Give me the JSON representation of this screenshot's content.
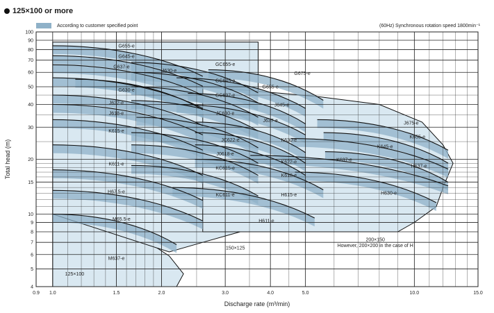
{
  "header": {
    "title": "125×100 or more",
    "legend_label": "According to customer specified point",
    "right_note": "(60Hz) Synchronous rotation speed 1800min⁻¹"
  },
  "colors": {
    "region_fill": "#d9e8f1",
    "band_fill": "#8fb1c8",
    "grid": "#222222",
    "curve": "#111111"
  },
  "chart_data": {
    "type": "pump-performance-map",
    "xlabel": "Discharge rate (m³/min)",
    "ylabel": "Total head (m)",
    "xscale": "log",
    "yscale": "log",
    "xlim": [
      0.9,
      15.0
    ],
    "ylim": [
      4,
      100
    ],
    "x_ticks": [
      0.9,
      1.0,
      1.5,
      2.0,
      3.0,
      4.0,
      5.0,
      10.0,
      15.0
    ],
    "x_tick_labels": [
      "0.9",
      "1.0",
      "1.5",
      "2.0",
      "3.0",
      "4.0",
      "5.0",
      "10.0",
      "15.0"
    ],
    "y_ticks": [
      4,
      5,
      6,
      7,
      8,
      9,
      10,
      15,
      20,
      30,
      40,
      50,
      60,
      70,
      80,
      90,
      100
    ],
    "y_tick_labels": [
      "4",
      "5",
      "6",
      "7",
      "8",
      "9",
      "10",
      "15",
      "20",
      "30",
      "40",
      "50",
      "60",
      "70",
      "80",
      "90",
      "100"
    ],
    "grid": true,
    "regions": [
      {
        "label": "125×100",
        "x": 1.15,
        "y": 4.6,
        "outline": [
          [
            1.0,
            4.0
          ],
          [
            2.2,
            4.0
          ],
          [
            2.3,
            4.7
          ],
          [
            2.1,
            5.9
          ],
          [
            1.8,
            7.2
          ],
          [
            1.45,
            8.4
          ],
          [
            1.0,
            10.0
          ]
        ]
      },
      {
        "label": "150×125",
        "x": 3.2,
        "y": 6.4,
        "outline": [
          [
            1.0,
            10.0
          ],
          [
            2.1,
            6.2
          ],
          [
            2.6,
            7.0
          ],
          [
            3.3,
            8.0
          ],
          [
            3.7,
            8.8
          ],
          [
            3.7,
            88
          ],
          [
            1.0,
            88
          ]
        ]
      },
      {
        "label": "200×150",
        "x": 7.8,
        "y": 7.1,
        "outline": [
          [
            2.6,
            8.0
          ],
          [
            9.0,
            8.0
          ],
          [
            10.0,
            9.0
          ],
          [
            11.5,
            11.0
          ],
          [
            12.0,
            14.0
          ],
          [
            12.8,
            19.0
          ],
          [
            12.0,
            24.0
          ],
          [
            10.5,
            32.0
          ],
          [
            8.0,
            40.0
          ],
          [
            5.5,
            44.0
          ],
          [
            4.3,
            46.0
          ],
          [
            2.6,
            50.0
          ]
        ]
      },
      {
        "label": "However, 200×200 in the case of H",
        "x": 7.8,
        "y": 6.6,
        "outline": []
      }
    ],
    "pumps": [
      {
        "label": "G655-e",
        "x": 1.6,
        "y": 82,
        "head_shutoff": 84,
        "x_end": 2.6
      },
      {
        "label": "G645-e",
        "x": 1.6,
        "y": 72,
        "head_shutoff": 74,
        "x_end": 2.6
      },
      {
        "label": "G637-e",
        "x": 1.55,
        "y": 63,
        "head_shutoff": 66,
        "x_end": 2.6
      },
      {
        "label": "J630-e",
        "x": 2.1,
        "y": 60,
        "head_shutoff": 55,
        "x_end": 2.6
      },
      {
        "label": "G630-e",
        "x": 1.6,
        "y": 47,
        "head_shutoff": 56,
        "x_end": 2.6
      },
      {
        "label": "J622-e",
        "x": 1.5,
        "y": 40,
        "head_shutoff": 45,
        "x_end": 2.6
      },
      {
        "label": "J618-e",
        "x": 1.5,
        "y": 35,
        "head_shutoff": 40,
        "x_end": 2.6
      },
      {
        "label": "K615-e",
        "x": 1.5,
        "y": 28,
        "head_shutoff": 33,
        "x_end": 2.6
      },
      {
        "label": "K611-e",
        "x": 1.5,
        "y": 18.5,
        "head_shutoff": 24,
        "x_end": 2.6
      },
      {
        "label": "H67.5-e",
        "x": 1.5,
        "y": 13,
        "head_shutoff": 17.5,
        "x_end": 2.6
      },
      {
        "label": "M65.5-e",
        "x": 1.55,
        "y": 9.2,
        "head_shutoff": 13.5,
        "x_end": 2.6
      },
      {
        "label": "M637-e",
        "x": 1.5,
        "y": 5.6,
        "head_shutoff": 10,
        "x_end": 2.2
      },
      {
        "label": "GC655-e",
        "x": 3.0,
        "y": 65,
        "head_shutoff": 68,
        "x_end": 3.7
      },
      {
        "label": "GC645-e",
        "x": 3.0,
        "y": 53,
        "head_shutoff": 60,
        "x_end": 3.7
      },
      {
        "label": "GC637-e",
        "x": 3.0,
        "y": 44,
        "head_shutoff": 50,
        "x_end": 3.7
      },
      {
        "label": "JC630-e",
        "x": 3.0,
        "y": 35,
        "head_shutoff": 42,
        "x_end": 3.7
      },
      {
        "label": "JC622-e",
        "x": 3.1,
        "y": 25,
        "head_shutoff": 34,
        "x_end": 3.7
      },
      {
        "label": "J0618-e",
        "x": 3.0,
        "y": 21,
        "head_shutoff": 28,
        "x_end": 3.7
      },
      {
        "label": "KC615-e",
        "x": 3.0,
        "y": 17.5,
        "head_shutoff": 24,
        "x_end": 3.7
      },
      {
        "label": "KC611-e",
        "x": 3.0,
        "y": 12.5,
        "head_shutoff": 18.5,
        "x_end": 3.7
      },
      {
        "label": "G675-e",
        "x": 4.9,
        "y": 58,
        "head_shutoff": 62,
        "x_end": 5.6
      },
      {
        "label": "G655-e",
        "x": 4.0,
        "y": 49,
        "head_shutoff": 56,
        "x_end": 5.0
      },
      {
        "label": "J645-e",
        "x": 4.3,
        "y": 39,
        "head_shutoff": 46,
        "x_end": 5.0
      },
      {
        "label": "J637-e",
        "x": 4.0,
        "y": 32,
        "head_shutoff": 40,
        "x_end": 5.0
      },
      {
        "label": "K630-e",
        "x": 4.5,
        "y": 25,
        "head_shutoff": 32,
        "x_end": 5.0
      },
      {
        "label": "K622-e",
        "x": 4.5,
        "y": 19,
        "head_shutoff": 28,
        "x_end": 5.0
      },
      {
        "label": "K618-e",
        "x": 4.5,
        "y": 16,
        "head_shutoff": 24,
        "x_end": 5.0
      },
      {
        "label": "H615-e",
        "x": 4.5,
        "y": 12.5,
        "head_shutoff": 20,
        "x_end": 5.6
      },
      {
        "label": "H611-e",
        "x": 3.9,
        "y": 9.0,
        "head_shutoff": 14,
        "x_end": 5.3
      },
      {
        "label": "J675-e",
        "x": 9.8,
        "y": 31,
        "head_shutoff": 33,
        "x_end": 12.4
      },
      {
        "label": "K655-e",
        "x": 10.2,
        "y": 26,
        "head_shutoff": 28,
        "x_end": 12.4
      },
      {
        "label": "K645-e",
        "x": 8.3,
        "y": 23,
        "head_shutoff": 26,
        "x_end": 12.4
      },
      {
        "label": "K637-e",
        "x": 6.4,
        "y": 19.5,
        "head_shutoff": 21,
        "x_end": 12.4
      },
      {
        "label": "H637-e",
        "x": 10.3,
        "y": 18,
        "head_shutoff": 22,
        "x_end": 12.4
      },
      {
        "label": "H630-e",
        "x": 8.5,
        "y": 12.8,
        "head_shutoff": 17,
        "x_end": 11.5
      }
    ]
  }
}
